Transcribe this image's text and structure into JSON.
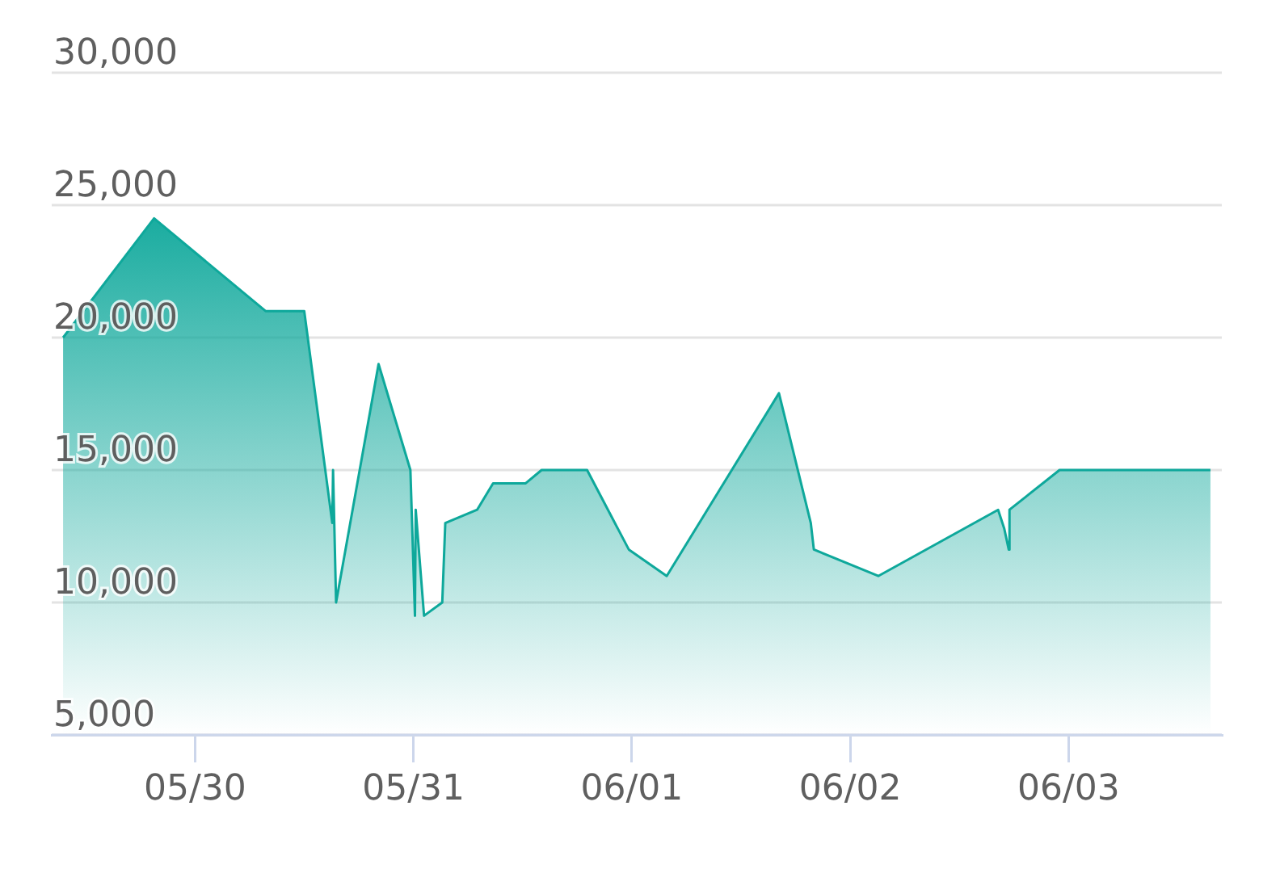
{
  "chart_data": {
    "type": "area",
    "x": [
      "--05-29T09:30",
      "--05-29T19:30",
      "--05-30T07:45",
      "--05-30T12:00",
      "--05-30T15:05",
      "--05-30T15:10",
      "--05-30T15:30",
      "--05-30T20:10",
      "--05-30T23:40",
      "--05-31T00:10",
      "--05-31T00:15",
      "--05-31T01:10",
      "--05-31T03:10",
      "--05-31T03:30",
      "--05-31T07:00",
      "--05-31T08:45",
      "--05-31T12:20",
      "--05-31T14:05",
      "--05-31T19:05",
      "--05-31T23:40",
      "--06-01T03:50",
      "--06-01T16:10",
      "--06-01T19:40",
      "--06-01T20:00",
      "--06-02T03:05",
      "--06-02T16:15",
      "--06-02T16:55",
      "--06-02T17:25",
      "--06-02T17:30",
      "--06-02T23:00",
      "--06-03T15:35"
    ],
    "values": [
      20000,
      24500,
      21000,
      21000,
      13000,
      15000,
      10000,
      19000,
      15000,
      9500,
      13500,
      9500,
      10000,
      13000,
      13500,
      14500,
      14500,
      15000,
      15000,
      12000,
      11000,
      17900,
      13000,
      12000,
      11000,
      13500,
      12800,
      12000,
      13500,
      15000,
      15000
    ],
    "color": "#0ea89b",
    "xlim": [
      "--05-29T08:15",
      "--06-03T16:50"
    ],
    "xticks": [
      {
        "value": "--05-30",
        "label": "05/30"
      },
      {
        "value": "--05-31",
        "label": "05/31"
      },
      {
        "value": "--06-01",
        "label": "06/01"
      },
      {
        "value": "--06-02",
        "label": "06/02"
      },
      {
        "value": "--06-03",
        "label": "06/03"
      }
    ],
    "ylim": [
      5000,
      30000
    ],
    "yticks": [
      {
        "value": 5000,
        "label": "5,000"
      },
      {
        "value": 10000,
        "label": "10,000"
      },
      {
        "value": 15000,
        "label": "15,000"
      },
      {
        "value": 20000,
        "label": "20,000"
      },
      {
        "value": 25000,
        "label": "25,000"
      },
      {
        "value": 30000,
        "label": "30,000"
      }
    ],
    "grid": "y"
  }
}
